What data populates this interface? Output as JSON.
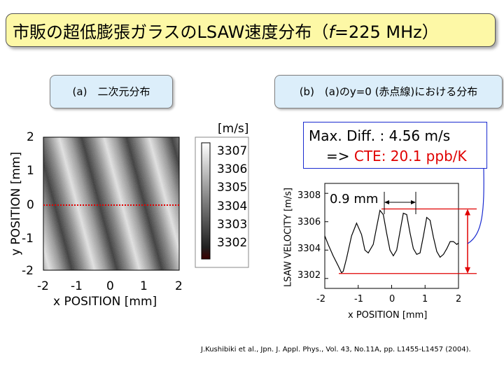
{
  "title": {
    "text_before": "市販の超低膨張ガラスのLSAW速度分布（",
    "f_symbol": "f",
    "text_after": "=225 MHz）"
  },
  "panel_a": {
    "label": "(a)　二次元分布",
    "y_ticks": [
      "2",
      "1",
      "0",
      "-1",
      "-2"
    ],
    "x_ticks": [
      "-2",
      "-1",
      "0",
      "1",
      "2"
    ],
    "xlabel": "x POSITION [mm]",
    "ylabel": "y POSITION [mm]",
    "colorbar": {
      "unit": "[m/s]",
      "values": [
        "3307",
        "3306",
        "3305",
        "3304",
        "3303",
        "3302"
      ]
    }
  },
  "panel_b": {
    "label": "(b)　(a)のy=0 (赤点線)における分布",
    "annotation_09": "0.9 mm",
    "callout": {
      "line1": "Max. Diff. : 4.56 m/s",
      "line2_prefix": "=> ",
      "line2_red": "CTE: 20.1 ppb/K"
    }
  },
  "chart_data": {
    "type": "line",
    "title": "",
    "xlabel": "x POSITION [mm]",
    "ylabel": "LSAW VELOCITY [m/s]",
    "xlim": [
      -2,
      2
    ],
    "ylim": [
      3301.3,
      3308.7
    ],
    "x_ticks": [
      -2,
      -1,
      0,
      1,
      2
    ],
    "y_ticks": [
      3302,
      3304,
      3306,
      3308
    ],
    "x_tick_labels": [
      "-2",
      "-1",
      "0",
      "1",
      "2"
    ],
    "y_tick_labels": [
      "3302",
      "3304",
      "3306",
      "3308"
    ],
    "grid": false,
    "series": [
      {
        "x": [
          -2.0,
          -1.9,
          -1.75,
          -1.6,
          -1.5,
          -1.45,
          -1.35,
          -1.2,
          -1.05,
          -0.9,
          -0.8,
          -0.7,
          -0.55,
          -0.45,
          -0.35,
          -0.25,
          -0.15,
          -0.05,
          0.05,
          0.15,
          0.25,
          0.35,
          0.45,
          0.55,
          0.65,
          0.75,
          0.85,
          0.95,
          1.05,
          1.15,
          1.25,
          1.35,
          1.45,
          1.55,
          1.65,
          1.75,
          1.85,
          1.95,
          2.0
        ],
        "y": [
          3305.0,
          3304.4,
          3303.6,
          3302.9,
          3302.4,
          3302.5,
          3303.4,
          3305.0,
          3305.9,
          3305.1,
          3304.0,
          3303.8,
          3304.4,
          3305.6,
          3306.8,
          3306.5,
          3305.2,
          3304.0,
          3303.6,
          3304.0,
          3305.3,
          3306.6,
          3306.5,
          3305.2,
          3304.1,
          3303.7,
          3303.8,
          3305.0,
          3306.3,
          3306.1,
          3304.9,
          3303.9,
          3303.5,
          3303.7,
          3304.1,
          3304.6,
          3304.6,
          3304.4,
          3304.5
        ]
      }
    ],
    "reference_lines": {
      "upper_y": 3306.9,
      "lower_y": 3302.35,
      "dotted_zero_line_in_panel_a": 0
    }
  },
  "colors": {
    "title_bg": "#fdf8a6",
    "label_bg": "#dceefa",
    "red": "#e00000",
    "blue": "#1a2bd0"
  },
  "citation": "J.Kushibiki et al., Jpn. J. Appl. Phys., Vol. 43, No.11A, pp. L1455-L1457 (2004)."
}
